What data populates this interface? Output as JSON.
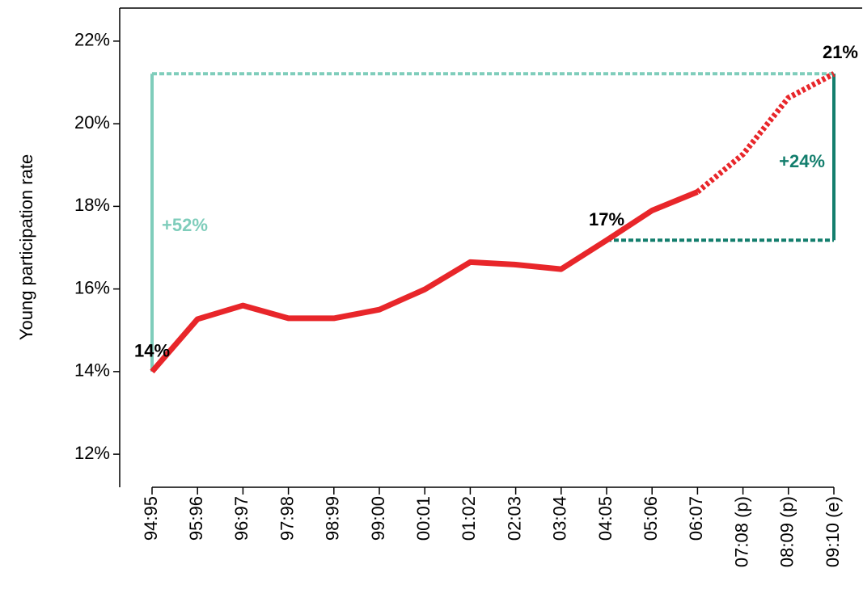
{
  "chart_data": {
    "type": "line",
    "y_label": "Young participation rate",
    "categories": [
      "94:95",
      "95:96",
      "96:97",
      "97:98",
      "98:99",
      "99:00",
      "00:01",
      "01:02",
      "02:03",
      "03:04",
      "04:05",
      "05:06",
      "06:07",
      "07:08 (p)",
      "08:09 (p)",
      "09:10 (e)"
    ],
    "series": [
      {
        "color": "#e8262a",
        "dash": false,
        "values": [
          14.0,
          15.27,
          15.6,
          15.29,
          15.29,
          15.5,
          15.99,
          16.65,
          16.59,
          16.48,
          17.18,
          17.9,
          18.35,
          null,
          null,
          null
        ],
        "value_labels": [
          "14%",
          null,
          null,
          null,
          null,
          null,
          null,
          null,
          null,
          null,
          "17%",
          null,
          null,
          null,
          null,
          null
        ]
      },
      {
        "color": "#e8262a",
        "dash": true,
        "values": [
          null,
          null,
          null,
          null,
          null,
          null,
          null,
          null,
          null,
          null,
          null,
          null,
          18.35,
          19.26,
          20.63,
          21.21
        ],
        "value_labels": [
          null,
          null,
          null,
          null,
          null,
          null,
          null,
          null,
          null,
          null,
          null,
          null,
          null,
          null,
          null,
          "21%"
        ]
      }
    ],
    "annotations": [
      {
        "text": "+52%",
        "color": "#7fcdbb"
      },
      {
        "text": "+24%",
        "color": "#137e6d"
      }
    ],
    "ylim": [
      11.2,
      22.8
    ],
    "yticks": [
      {
        "value": 12,
        "label": "12%"
      },
      {
        "value": 14,
        "label": "14%"
      },
      {
        "value": 16,
        "label": "16%"
      },
      {
        "value": 18,
        "label": "18%"
      },
      {
        "value": 20,
        "label": "20%"
      },
      {
        "value": 22,
        "label": "22%"
      }
    ]
  }
}
